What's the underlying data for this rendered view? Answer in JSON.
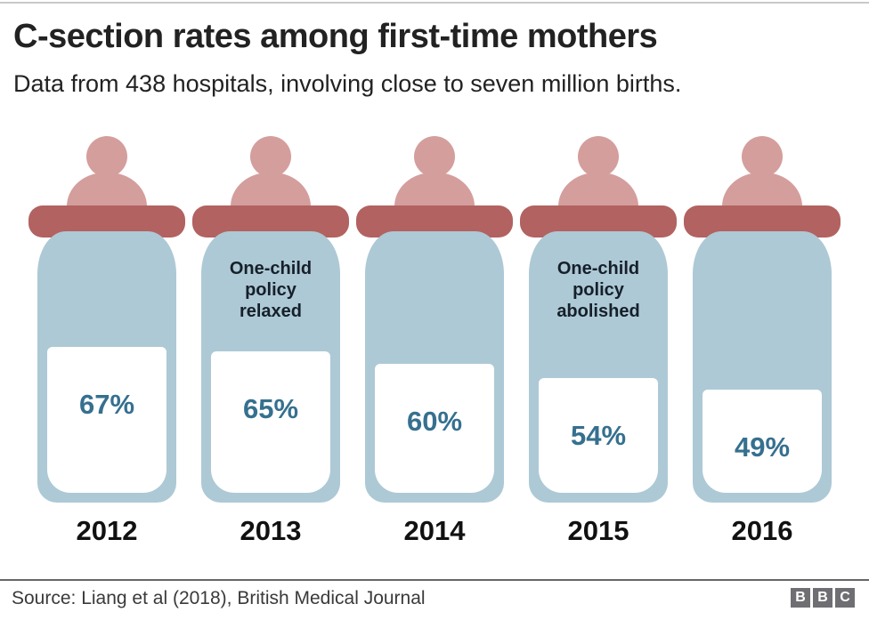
{
  "header": {
    "title": "C-section rates among first-time mothers",
    "subtitle": "Data from 438 hospitals, involving close to seven million births."
  },
  "chart_data": {
    "type": "bar",
    "variant": "pictogram-baby-bottles",
    "title": "C-section rates among first-time mothers",
    "subtitle": "Data from 438 hospitals, involving close to seven million births.",
    "categories": [
      "2012",
      "2013",
      "2014",
      "2015",
      "2016"
    ],
    "values": [
      67,
      65,
      60,
      54,
      49
    ],
    "unit": "%",
    "value_labels": [
      "67%",
      "65%",
      "60%",
      "54%",
      "49%"
    ],
    "annotations": [
      {
        "category": "2013",
        "text": "One-child policy relaxed",
        "lines": [
          "One-child",
          "policy",
          "relaxed"
        ]
      },
      {
        "category": "2015",
        "text": "One-child policy abolished",
        "lines": [
          "One-child",
          "policy",
          "abolished"
        ]
      }
    ],
    "ylim": [
      0,
      100
    ],
    "grid": false,
    "legend": "none"
  },
  "footer": {
    "source": "Source: Liang et al (2018), British Medical Journal",
    "logo_letters": [
      "B",
      "B",
      "C"
    ]
  },
  "colors": {
    "background": "#ffffff",
    "teat_pink": "#d49e9d",
    "cap_red": "#b26260",
    "bottle_blue": "#adc9d5",
    "fill_white": "#ffffff",
    "value_blue": "#36708f",
    "title_text": "#222222",
    "annotation_text": "#16202a",
    "year_text": "#111111",
    "source_text": "#3a3a3a",
    "divider_gray": "#666666",
    "top_rule_gray": "#c9c9c9",
    "bbc_gray": "#6f6f73"
  }
}
